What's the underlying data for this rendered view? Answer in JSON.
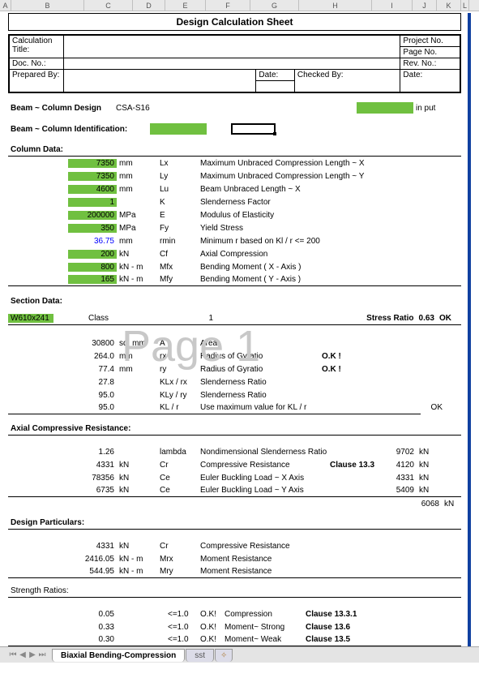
{
  "watermark": "Page 1",
  "columns": [
    "A",
    "B",
    "C",
    "D",
    "E",
    "F",
    "G",
    "H",
    "I",
    "J",
    "K",
    "L"
  ],
  "title": "Design Calculation Sheet",
  "header": {
    "calc_title_label": "Calculation Title:",
    "project_label": "Project No.",
    "doc_label": "Doc. No.:",
    "page_label": "Page No.",
    "rev_label": "Rev. No.:",
    "prepared_label": "Prepared By:",
    "date_label": "Date:",
    "checked_label": "Checked By:",
    "date2_label": "Date:"
  },
  "beam_design_label": "Beam ~ Column Design",
  "beam_design_code": "CSA-S16",
  "input_label": "in put",
  "beam_id_label": "Beam ~ Column Identification:",
  "column_data_label": "Column Data:",
  "column_data": [
    {
      "val": "7350",
      "unit": "mm",
      "sym": "Lx",
      "desc": "Maximum Unbraced Compression Length ~ X",
      "g": true
    },
    {
      "val": "7350",
      "unit": "mm",
      "sym": "Ly",
      "desc": "Maximum Unbraced Compression Length ~ Y",
      "g": true
    },
    {
      "val": "4600",
      "unit": "mm",
      "sym": "Lu",
      "desc": "Beam Unbraced Length ~ X",
      "g": true
    },
    {
      "val": "1",
      "unit": "",
      "sym": "K",
      "desc": "Slenderness Factor",
      "g": true
    },
    {
      "val": "200000",
      "unit": "MPa",
      "sym": "E",
      "desc": "Modulus of Elasticity",
      "g": true
    },
    {
      "val": "350",
      "unit": "MPa",
      "sym": "Fy",
      "desc": "Yield Stress",
      "g": true
    },
    {
      "val": "36.75",
      "unit": "mm",
      "sym": "rmin",
      "desc": "Minimum r based on Kl / r <= 200",
      "g": false,
      "blue": true
    },
    {
      "val": "200",
      "unit": "kN",
      "sym": "Cf",
      "desc": "Axial Compression",
      "g": true
    },
    {
      "val": "800",
      "unit": "kN - m",
      "sym": "Mfx",
      "desc": "Bending Moment ( X - Axis )",
      "g": true
    },
    {
      "val": "165",
      "unit": "kN - m",
      "sym": "Mfy",
      "desc": "Bending Moment ( Y - Axis )",
      "g": true
    }
  ],
  "section_data_label": "Section Data:",
  "section_name": "W610x241",
  "class_label": "Class",
  "class_val": "1",
  "stress_ratio_label": "Stress Ratio",
  "stress_ratio_val": "0.63",
  "stress_ok": "OK",
  "section_data": [
    {
      "val": "30800",
      "unit": "sq. mm",
      "sym": "A",
      "desc": "Area",
      "note": ""
    },
    {
      "val": "264.0",
      "unit": "mm",
      "sym": "rx",
      "desc": "Radius of Gyratio",
      "note": "O.K !"
    },
    {
      "val": "77.4",
      "unit": "mm",
      "sym": "ry",
      "desc": "Radius of Gyratio",
      "note": "O.K !"
    },
    {
      "val": "27.8",
      "unit": "",
      "sym": "KLx / rx",
      "desc": "Slenderness Ratio",
      "note": ""
    },
    {
      "val": "95.0",
      "unit": "",
      "sym": "KLy / ry",
      "desc": "Slenderness Ratio",
      "note": ""
    },
    {
      "val": "95.0",
      "unit": "",
      "sym": "KL / r",
      "desc": "Use maximum value for KL / r",
      "note": "",
      "outside": "OK"
    }
  ],
  "acr_label": "Axial Compressive Resistance:",
  "acr": [
    {
      "val": "1.26",
      "unit": "",
      "sym": "lambda",
      "desc": "Nondimensional Slenderness Ratio",
      "r": "9702",
      "ru": "kN"
    },
    {
      "val": "4331",
      "unit": "kN",
      "sym": "Cr",
      "desc": "Compressive Resistance",
      "cl": "Clause 13.3",
      "r": "4120",
      "ru": "kN"
    },
    {
      "val": "78356",
      "unit": "kN",
      "sym": "Ce",
      "desc": "Euler Buckling Load ~ X Axis",
      "r": "4331",
      "ru": "kN"
    },
    {
      "val": "6735",
      "unit": "kN",
      "sym": "Ce",
      "desc": "Euler Buckling Load ~ Y Axis",
      "r": "5409",
      "ru": "kN"
    },
    {
      "val": "",
      "unit": "",
      "sym": "",
      "desc": "",
      "r": "6068",
      "ru": "kN"
    }
  ],
  "design_label": "Design Particulars:",
  "design": [
    {
      "val": "4331",
      "unit": "kN",
      "sym": "Cr",
      "desc": "Compressive Resistance"
    },
    {
      "val": "2416.05",
      "unit": "kN - m",
      "sym": "Mrx",
      "desc": "Moment Resistance"
    },
    {
      "val": "544.95",
      "unit": "kN - m",
      "sym": "Mry",
      "desc": "Moment Resistance"
    }
  ],
  "strength_label": "Strength Ratios:",
  "strength": [
    {
      "val": "0.05",
      "chk": "<=1.0",
      "ok": "O.K!",
      "desc": "Compression",
      "cl": "Clause 13.3.1"
    },
    {
      "val": "0.33",
      "chk": "<=1.0",
      "ok": "O.K!",
      "desc": "Moment~ Strong",
      "cl": "Clause 13.6"
    },
    {
      "val": "0.30",
      "chk": "<=1.0",
      "ok": "O.K!",
      "desc": "Moment~ Weak",
      "cl": "Clause 13.5"
    }
  ],
  "tabs": {
    "active": "Biaxial Bending-Compression",
    "other": "sst"
  }
}
